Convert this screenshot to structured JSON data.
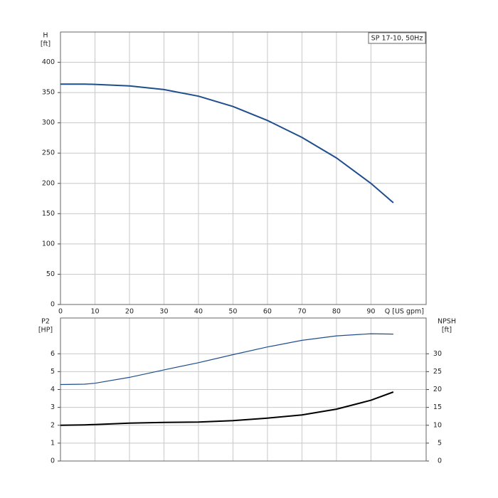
{
  "chart_data": [
    {
      "type": "line",
      "legend_box": "SP 17-10, 50Hz",
      "y_label": "H",
      "y_unit": "[ft]",
      "x_label": "Q [US gpm]",
      "x": [
        0,
        7,
        10,
        20,
        30,
        40,
        50,
        60,
        70,
        80,
        90,
        96.5
      ],
      "series": [
        {
          "color": "#1f4e8c",
          "values": [
            364,
            364,
            363.5,
            361,
            355,
            344,
            327,
            304,
            276,
            242,
            200,
            168
          ]
        }
      ],
      "xlim": [
        0,
        106
      ],
      "xticks": [
        0,
        10,
        20,
        30,
        40,
        50,
        60,
        70,
        80,
        90
      ],
      "ylim": [
        0,
        450
      ],
      "yticks": [
        0,
        50,
        100,
        150,
        200,
        250,
        300,
        350,
        400
      ],
      "grid": true
    },
    {
      "type": "line",
      "y_label": "P2",
      "y_unit": "[HP]",
      "y2_label": "NPSH",
      "y2_unit": "[ft]",
      "x": [
        0,
        7,
        10,
        20,
        30,
        40,
        50,
        60,
        70,
        80,
        90,
        96.5
      ],
      "series": [
        {
          "color": "#1f4e8c",
          "values": [
            4.28,
            4.3,
            4.35,
            4.68,
            5.1,
            5.5,
            5.95,
            6.38,
            6.75,
            7.0,
            7.12,
            7.1
          ]
        },
        {
          "color": "#000000",
          "axis": "y2",
          "values": [
            10,
            10.1,
            10.2,
            10.6,
            10.8,
            10.9,
            11.3,
            12,
            12.9,
            14.5,
            17,
            19.3
          ]
        }
      ],
      "xlim": [
        0,
        106
      ],
      "xticks": [
        0,
        10,
        20,
        30,
        40,
        50,
        60,
        70,
        80,
        90
      ],
      "ylim": [
        0,
        8
      ],
      "yticks": [
        0,
        1,
        2,
        3,
        4,
        5,
        6
      ],
      "y2lim": [
        0,
        40
      ],
      "y2ticks": [
        0,
        5,
        10,
        15,
        20,
        25,
        30
      ],
      "grid": true
    }
  ]
}
